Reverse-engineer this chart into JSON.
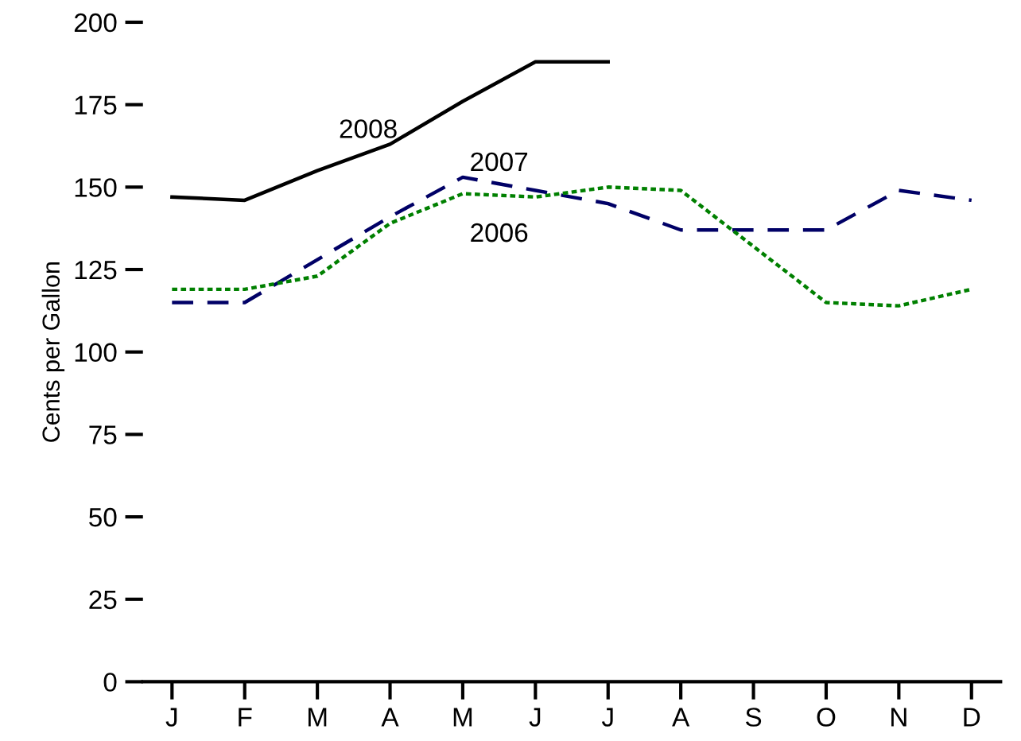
{
  "chart_data": {
    "type": "line",
    "ylabel": "Cents per Gallon",
    "categories": [
      "J",
      "F",
      "M",
      "A",
      "M",
      "J",
      "J",
      "A",
      "S",
      "O",
      "N",
      "D"
    ],
    "ylim": [
      0,
      200
    ],
    "yticks": [
      0,
      25,
      50,
      75,
      100,
      125,
      150,
      175,
      200
    ],
    "grid": false,
    "legend": false,
    "series": [
      {
        "name": "2008",
        "color": "#000000",
        "line_style": "solid",
        "values": [
          147,
          146,
          155,
          163,
          176,
          188,
          188,
          null,
          null,
          null,
          null,
          null
        ]
      },
      {
        "name": "2007",
        "color": "#000066",
        "line_style": "dashed",
        "values": [
          115,
          115,
          128,
          141,
          153,
          149,
          145,
          137,
          137,
          137,
          149,
          146
        ]
      },
      {
        "name": "2006",
        "color": "#008000",
        "line_style": "dotted",
        "values": [
          119,
          119,
          123,
          139,
          148,
          147,
          150,
          149,
          132,
          115,
          114,
          119
        ]
      }
    ]
  }
}
